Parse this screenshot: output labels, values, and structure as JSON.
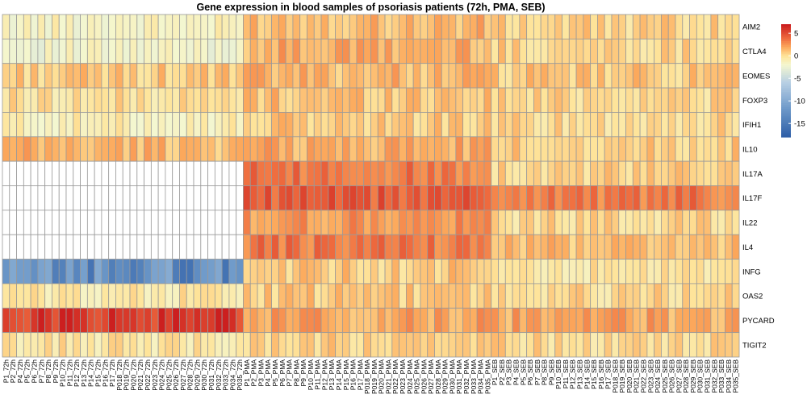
{
  "chart_data": {
    "type": "heatmap",
    "title": "Gene expression in blood samples of psoriasis patients (72h, PMA, SEB)",
    "xlabel": "",
    "ylabel": "",
    "rows": [
      "AIM2",
      "CTLA4",
      "EOMES",
      "FOXP3",
      "IFIH1",
      "IL10",
      "IL17A",
      "IL17F",
      "IL22",
      "IL4",
      "INFG",
      "OAS2",
      "PYCARD",
      "TIGIT2"
    ],
    "column_groups": [
      {
        "condition": "72h",
        "columns": [
          "P1_72h",
          "P2_72h",
          "P4_72h",
          "P5_72h",
          "P6_72h",
          "P7_72h",
          "P8_72h",
          "P9_72h",
          "P10_72h",
          "P11_72h",
          "P12_72h",
          "P13_72h",
          "P14_72h",
          "P15_72h",
          "P16_72h",
          "P17_72h",
          "P018_72h",
          "P019_72h",
          "P020_72h",
          "P021_72h",
          "P022_72h",
          "P023_72h",
          "P024_72h",
          "P025_72h",
          "P026_72h",
          "P027_72h",
          "P028_72h",
          "P029_72h",
          "P030_72h",
          "P031_72h",
          "P032_72h",
          "P033_72h",
          "P034_72h",
          "P035_72h"
        ]
      },
      {
        "condition": "PMA",
        "columns": [
          "P1_PMA",
          "P2_PMA",
          "P3_PMA",
          "P4_PMA",
          "P5_PMA",
          "P6_PMA",
          "P7_PMA",
          "P8_PMA",
          "P9_PMA",
          "P10_PMA",
          "P11_PMA",
          "P12_PMA",
          "P13_PMA",
          "P14_PMA",
          "P15_PMA",
          "P16_PMA",
          "P17_PMA",
          "P018_PMA",
          "P019_PMA",
          "P020_PMA",
          "P021_PMA",
          "P022_PMA",
          "P023_PMA",
          "P024_PMA",
          "P025_PMA",
          "P026_PMA",
          "P027_PMA",
          "P028_PMA",
          "P029_PMA",
          "P030_PMA",
          "P031_PMA",
          "P032_PMA",
          "P033_PMA",
          "P034_PMA",
          "P035_PMA"
        ]
      },
      {
        "condition": "SEB",
        "columns": [
          "P1_SEB",
          "P2_SEB",
          "P3_SEB",
          "P4_SEB",
          "P5_SEB",
          "P6_SEB",
          "P7_SEB",
          "P8_SEB",
          "P9_SEB",
          "P10_SEB",
          "P11_SEB",
          "P12_SEB",
          "P13_SEB",
          "P14_SEB",
          "P15_SEB",
          "P16_SEB",
          "P17_SEB",
          "P018_SEB",
          "P019_SEB",
          "P020_SEB",
          "P021_SEB",
          "P022_SEB",
          "P023_SEB",
          "P024_SEB",
          "P025_SEB",
          "P026_SEB",
          "P027_SEB",
          "P028_SEB",
          "P029_SEB",
          "P030_SEB",
          "P031_SEB",
          "P032_SEB",
          "P033_SEB",
          "P034_SEB",
          "P035_SEB"
        ]
      }
    ],
    "row_levels_by_group": {
      "AIM2": {
        "72h": -1.5,
        "PMA": 1.5,
        "SEB": 0.5
      },
      "CTLA4": {
        "72h": -2.0,
        "PMA": 1.8,
        "SEB": 0.5
      },
      "EOMES": {
        "72h": 0.8,
        "PMA": 1.5,
        "SEB": 0.8
      },
      "FOXP3": {
        "72h": 0.0,
        "PMA": 1.2,
        "SEB": 0.5
      },
      "IFIH1": {
        "72h": -1.0,
        "PMA": 0.8,
        "SEB": 0.3
      },
      "IL10": {
        "72h": 1.5,
        "PMA": 1.8,
        "SEB": 0.8
      },
      "IL17A": {
        "72h": null,
        "PMA": 3.5,
        "SEB": 0.5
      },
      "IL17F": {
        "72h": null,
        "PMA": 4.5,
        "SEB": 3.5
      },
      "IL22": {
        "72h": null,
        "PMA": 2.5,
        "SEB": 0.3
      },
      "IL4": {
        "72h": null,
        "PMA": 3.5,
        "SEB": 1.2
      },
      "INFG": {
        "72h": -13,
        "PMA": 0.8,
        "SEB": -0.5
      },
      "OAS2": {
        "72h": -0.5,
        "PMA": 0.8,
        "SEB": 0.2
      },
      "PYCARD": {
        "72h": 6.0,
        "PMA": 2.0,
        "SEB": 2.0
      },
      "TIGIT2": {
        "72h": -0.3,
        "PMA": 0.5,
        "SEB": 0.3
      }
    },
    "missing_cells_note": "",
    "color_scale": {
      "range": [
        -18,
        7
      ],
      "stops": [
        {
          "value": -18,
          "color": "#3060a8"
        },
        {
          "value": -12,
          "color": "#6c98c8"
        },
        {
          "value": -6,
          "color": "#b7cfe4"
        },
        {
          "value": -2,
          "color": "#f4f7d0"
        },
        {
          "value": 0,
          "color": "#fee49a"
        },
        {
          "value": 2,
          "color": "#fca95c"
        },
        {
          "value": 4,
          "color": "#ee6a3e"
        },
        {
          "value": 7,
          "color": "#cc1f1f"
        }
      ],
      "missing_color": "#ffffff"
    },
    "legend": {
      "position": "top-right",
      "ticks": [
        "5",
        "0",
        "-5",
        "-10",
        "-15"
      ],
      "tick_values": [
        5,
        0,
        -5,
        -10,
        -15
      ]
    },
    "grid": true,
    "grid_color": "#9a9a9a"
  }
}
